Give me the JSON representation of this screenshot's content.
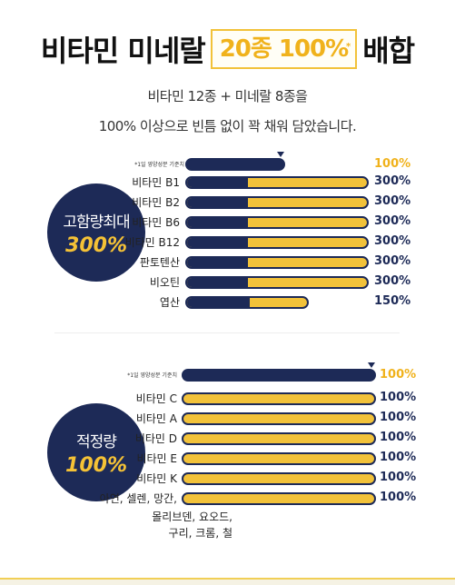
{
  "header": {
    "title_left": "비타민 미네랄",
    "title_highlight": "20종 100%",
    "title_right": "배합",
    "line1": "비타민 12종 + 미네랄 8종을",
    "line2": "100% 이상으로 빈틈 없이 꽉 채워 담았습니다."
  },
  "section_high": {
    "circle_top": "고함량최대",
    "circle_value": "300%",
    "reference_label": "*1일 영양성분 기준치",
    "reference_value": "100%",
    "items": [
      {
        "label": "비타민 B1",
        "value": "300%"
      },
      {
        "label": "비타민 B2",
        "value": "300%"
      },
      {
        "label": "비타민 B6",
        "value": "300%"
      },
      {
        "label": "비타민 B12",
        "value": "300%"
      },
      {
        "label": "판토텐산",
        "value": "300%"
      },
      {
        "label": "비오틴",
        "value": "300%"
      },
      {
        "label": "엽산",
        "value": "150%"
      }
    ]
  },
  "section_proper": {
    "circle_top": "적정량",
    "circle_value": "100%",
    "reference_label": "*1일 영양성분 기준치",
    "reference_value": "100%",
    "items": [
      {
        "label": "비타민 C",
        "value": "100%"
      },
      {
        "label": "비타민 A",
        "value": "100%"
      },
      {
        "label": "비타민 D",
        "value": "100%"
      },
      {
        "label": "비타민 E",
        "value": "100%"
      },
      {
        "label": "비타민 K",
        "value": "100%"
      },
      {
        "label": "아연, 셀렌, 망간,",
        "value": "100%"
      }
    ],
    "extra_lines": [
      "몰리브덴, 요오드,",
      "구리, 크롬, 철"
    ]
  },
  "colors": {
    "navy": "#1d2a57",
    "gold": "#f2c23a"
  }
}
